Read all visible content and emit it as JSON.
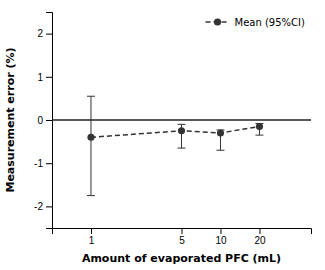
{
  "chart_data": {
    "type": "line",
    "x": [
      1,
      5,
      10,
      20
    ],
    "series": [
      {
        "name": "Mean (95%CI)",
        "color": "#333333",
        "values": [
          -0.4,
          -0.25,
          -0.3,
          -0.15
        ],
        "yerr_upper": [
          0.95,
          0.15,
          0.07,
          0.07
        ],
        "yerr_lower": [
          1.35,
          0.4,
          0.4,
          0.2
        ],
        "line_style": "dashed",
        "marker": "circle"
      }
    ],
    "xlabel": "Amount of evaporated PFC (mL)",
    "ylabel": "Measurement error (%)",
    "log": "x",
    "xlim": [
      0.5,
      50
    ],
    "xticks": [
      1,
      5,
      10,
      20
    ],
    "ylim": [
      -2.5,
      2.5
    ],
    "yticks": [
      -2,
      -1,
      0,
      1,
      2
    ],
    "hline": 0,
    "legend": "upper right",
    "grid": false
  }
}
